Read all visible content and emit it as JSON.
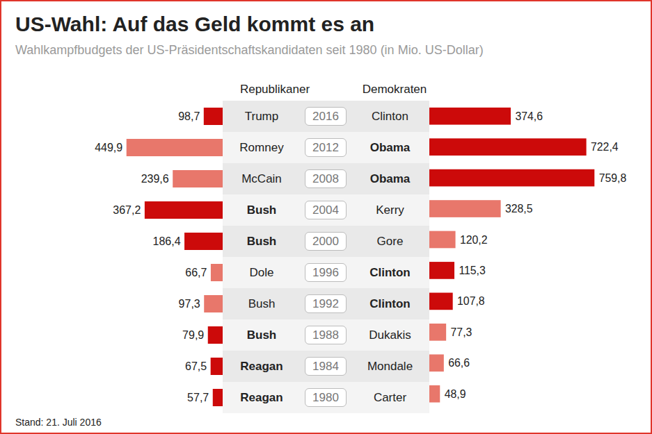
{
  "chart_data": {
    "type": "bar",
    "orientation": "horizontal",
    "title": "US-Wahl: Auf das Geld kommt es an",
    "subtitle": "Wahlkampfbudgets der US-Präsidentschaftskandidaten seit 1980 (in Mio. US-Dollar)",
    "caption": "Stand: 21. Juli 2016",
    "categories": [
      "2016",
      "2012",
      "2008",
      "2004",
      "2000",
      "1996",
      "1992",
      "1988",
      "1984",
      "1980"
    ],
    "xlim": [
      0,
      800
    ],
    "tick_labels": false,
    "grid": false,
    "data_labels": true,
    "series": [
      {
        "name": "Republikaner",
        "candidates": [
          "Trump",
          "Romney",
          "McCain",
          "Bush",
          "Bush",
          "Dole",
          "Bush",
          "Bush",
          "Reagan",
          "Reagan"
        ],
        "winner": [
          false,
          false,
          false,
          true,
          true,
          false,
          false,
          true,
          true,
          true
        ],
        "values": [
          98.7,
          449.9,
          239.6,
          367.2,
          186.4,
          66.7,
          97.3,
          79.9,
          67.5,
          57.7
        ],
        "value_labels": [
          "98,7",
          "449,9",
          "239,6",
          "367,2",
          "186,4",
          "66,7",
          "97,3",
          "79,9",
          "67,5",
          "57,7"
        ],
        "colors": [
          "#cc0a0a",
          "#e8776b",
          "#e8776b",
          "#cc0a0a",
          "#cc0a0a",
          "#e8776b",
          "#e8776b",
          "#cc0a0a",
          "#cc0a0a",
          "#cc0a0a"
        ]
      },
      {
        "name": "Demokraten",
        "candidates": [
          "Clinton",
          "Obama",
          "Obama",
          "Kerry",
          "Gore",
          "Clinton",
          "Clinton",
          "Dukakis",
          "Mondale",
          "Carter"
        ],
        "winner": [
          false,
          true,
          true,
          false,
          false,
          true,
          true,
          false,
          false,
          false
        ],
        "values": [
          374.6,
          722.4,
          759.8,
          328.5,
          120.2,
          115.3,
          107.8,
          77.3,
          66.6,
          48.9
        ],
        "value_labels": [
          "374,6",
          "722,4",
          "759,8",
          "328,5",
          "120,2",
          "115,3",
          "107,8",
          "77,3",
          "66,6",
          "48,9"
        ],
        "colors": [
          "#cc0a0a",
          "#cc0a0a",
          "#cc0a0a",
          "#e8776b",
          "#e8776b",
          "#cc0a0a",
          "#cc0a0a",
          "#e8776b",
          "#e8776b",
          "#e8776b"
        ]
      }
    ]
  }
}
